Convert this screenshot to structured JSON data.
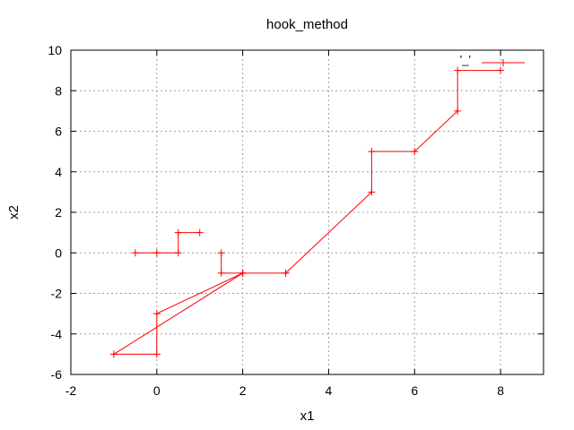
{
  "chart_data": {
    "type": "line",
    "title": "hook_method",
    "xlabel": "x1",
    "ylabel": "x2",
    "xlim": [
      -2,
      9
    ],
    "ylim": [
      -6,
      10
    ],
    "xticks": [
      -2,
      0,
      2,
      4,
      6,
      8
    ],
    "yticks": [
      -6,
      -4,
      -2,
      0,
      2,
      4,
      6,
      8,
      10
    ],
    "grid": true,
    "legend_position": "top-right",
    "series": [
      {
        "name": "'_'",
        "color": "#ff0000",
        "marker": "plus",
        "points": [
          [
            -0.5,
            0
          ],
          [
            0,
            0
          ],
          [
            0.5,
            0
          ],
          [
            0.5,
            1
          ],
          [
            1,
            1
          ],
          null,
          [
            1.5,
            0
          ],
          [
            1.5,
            -1
          ],
          [
            2,
            -1
          ],
          [
            3,
            -1
          ],
          null,
          [
            2,
            -1
          ],
          [
            0,
            -3
          ],
          [
            0,
            -5
          ],
          [
            -1,
            -5
          ],
          [
            2,
            -1
          ],
          null,
          [
            3,
            -1
          ],
          [
            5,
            3
          ],
          [
            5,
            5
          ],
          [
            6,
            5
          ],
          [
            7,
            7
          ],
          [
            7,
            9
          ],
          [
            8,
            9
          ]
        ]
      }
    ]
  }
}
